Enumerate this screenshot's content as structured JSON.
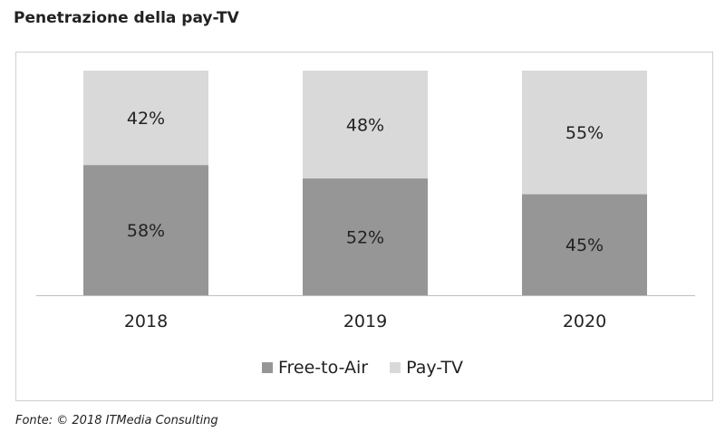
{
  "title": "Penetrazione della pay-TV",
  "source": "Fonte: © 2018 ITMedia Consulting",
  "colors": {
    "free_to_air": "#969696",
    "pay_tv": "#d9d9d9",
    "axis": "#bfbfbf"
  },
  "chart_data": {
    "type": "bar",
    "stacked": true,
    "percent_stacked": true,
    "title": "Penetrazione della pay-TV",
    "categories": [
      "2018",
      "2019",
      "2020"
    ],
    "series": [
      {
        "name": "Free-to-Air",
        "values": [
          58,
          52,
          45
        ],
        "labels": [
          "58%",
          "52%",
          "45%"
        ]
      },
      {
        "name": "Pay-TV",
        "values": [
          42,
          48,
          55
        ],
        "labels": [
          "42%",
          "48%",
          "55%"
        ]
      }
    ],
    "xlabel": "",
    "ylabel": "",
    "ylim": [
      0,
      100
    ],
    "grid": false,
    "legend": "bottom"
  }
}
